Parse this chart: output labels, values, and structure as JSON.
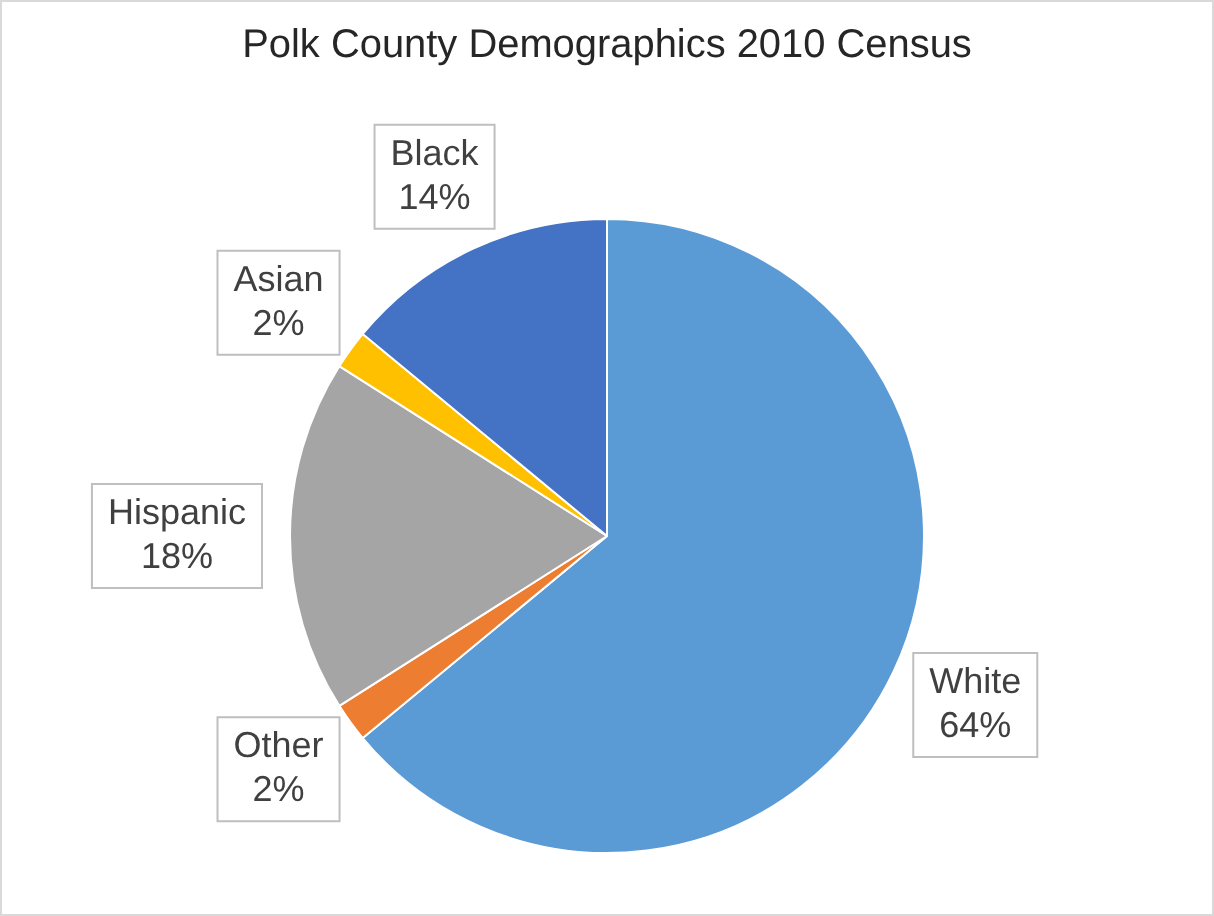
{
  "chart_data": {
    "type": "pie",
    "title": "Polk County Demographics 2010 Census",
    "categories": [
      "White",
      "Other",
      "Hispanic",
      "Asian",
      "Black"
    ],
    "values": [
      64,
      2,
      18,
      2,
      14
    ],
    "value_labels": [
      "64%",
      "2%",
      "18%",
      "2%",
      "14%"
    ],
    "colors": [
      "#5b9bd5",
      "#ed7d31",
      "#a5a5a5",
      "#ffc000",
      "#4472c4"
    ],
    "legend": false
  }
}
